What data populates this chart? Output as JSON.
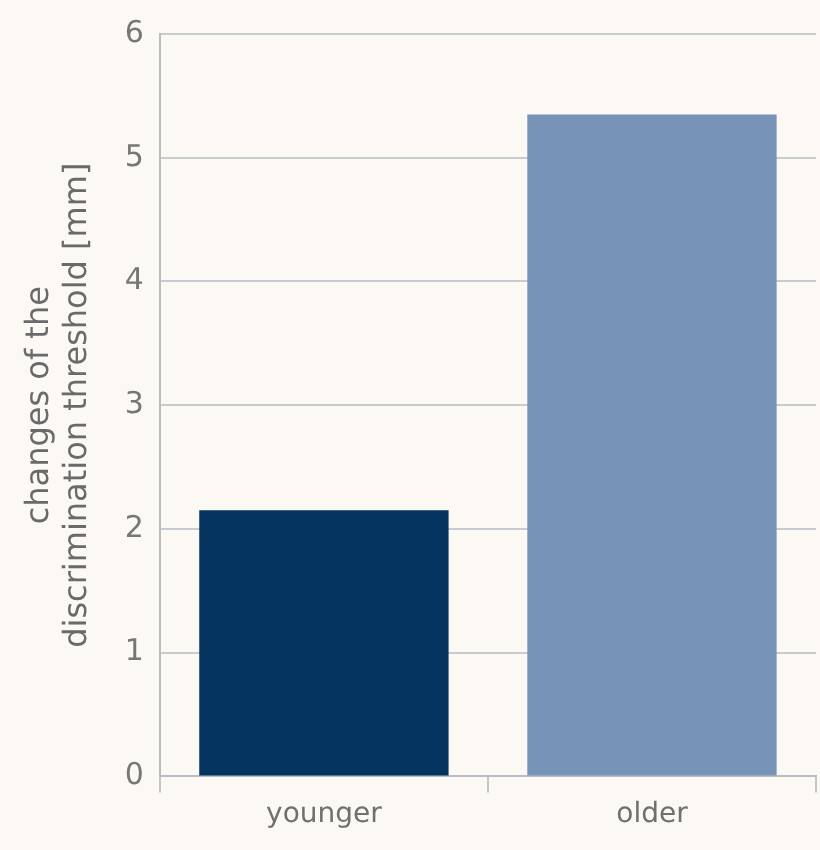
{
  "chart_data": {
    "type": "bar",
    "ylabel": "changes of the\ndiscrimination threshold [mm]",
    "categories": [
      "younger",
      "older"
    ],
    "values": [
      2.15,
      5.35
    ],
    "colors": [
      "#04335f",
      "#7893b8"
    ],
    "ylim": [
      0,
      6
    ],
    "yticks": [
      0,
      1,
      2,
      3,
      4,
      5,
      6
    ],
    "grid": "y"
  }
}
